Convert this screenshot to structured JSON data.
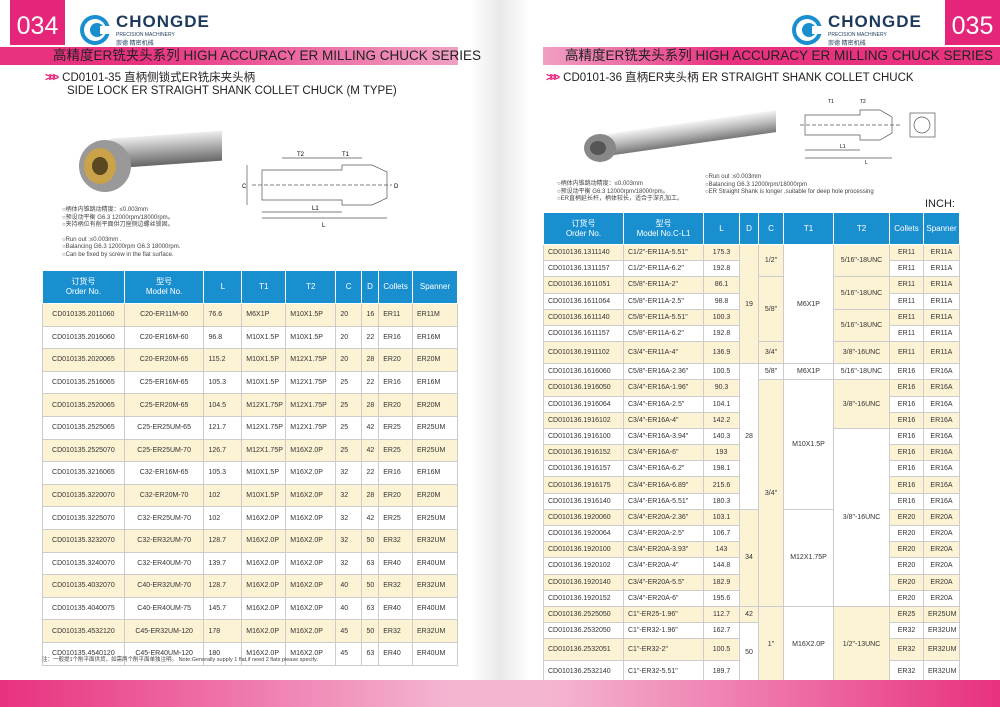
{
  "left": {
    "page_number": "034",
    "logo": {
      "brand": "CHONGDE",
      "sub": "PRECISION MACHINERY",
      "cn": "崇德 精密机械"
    },
    "band": "高精度ER铣夹头系列   HIGH ACCURACY ER MILLING CHUCK SERIES",
    "title_cn": "CD0101-35  直柄侧锁式ER铣床夹头柄",
    "title_en": "SIDE LOCK ER STRAIGHT SHANK COLLET CHUCK (M TYPE)",
    "drawing_labels": {
      "t1": "T1",
      "t2": "T2",
      "c": "C",
      "l1": "L1",
      "l": "L",
      "d": "D"
    },
    "notes_cn": [
      "○柄体内锥跳动精度：≤0.003mm",
      "○预设动平衡 G6.3 12000rpm/18000rpm。",
      "○夹持柄位有削平面供刀座侧边螺丝锁固。"
    ],
    "notes_en": [
      "○Run out :≤0.003mm .",
      "○Balancing G6.3 12000rpm G6.3 18000rpm.",
      "○Can be fixed by screw in the flat surface."
    ],
    "table": {
      "headers": [
        "订货号\nOrder No.",
        "型号\nModel No.",
        "L",
        "T1",
        "T2",
        "C",
        "D",
        "Collets",
        "Spanner"
      ],
      "rows": [
        [
          "CD010135.2011060",
          "C20-ER11M-60",
          "76.6",
          "M6X1P",
          "M10X1.5P",
          "20",
          "16",
          "ER11",
          "ER11M"
        ],
        [
          "CD010135.2016060",
          "C20-ER16M-60",
          "96.8",
          "M10X1.5P",
          "M10X1.5P",
          "20",
          "22",
          "ER16",
          "ER16M"
        ],
        [
          "CD010135.2020065",
          "C20-ER20M-65",
          "115.2",
          "M10X1.5P",
          "M12X1.75P",
          "20",
          "28",
          "ER20",
          "ER20M"
        ],
        [
          "CD010135.2516065",
          "C25-ER16M-65",
          "105.3",
          "M10X1.5P",
          "M12X1.75P",
          "25",
          "22",
          "ER16",
          "ER16M"
        ],
        [
          "CD010135.2520065",
          "C25-ER20M-65",
          "104.5",
          "M12X1.75P",
          "M12X1.75P",
          "25",
          "28",
          "ER20",
          "ER20M"
        ],
        [
          "CD010135.2525065",
          "C25-ER25UM-65",
          "121.7",
          "M12X1.75P",
          "M12X1.75P",
          "25",
          "42",
          "ER25",
          "ER25UM"
        ],
        [
          "CD010135.2525070",
          "C25-ER25UM-70",
          "126.7",
          "M12X1.75P",
          "M16X2.0P",
          "25",
          "42",
          "ER25",
          "ER25UM"
        ],
        [
          "CD010135.3216065",
          "C32-ER16M-65",
          "105.3",
          "M10X1.5P",
          "M16X2.0P",
          "32",
          "22",
          "ER16",
          "ER16M"
        ],
        [
          "CD010135.3220070",
          "C32-ER20M-70",
          "102",
          "M10X1.5P",
          "M16X2.0P",
          "32",
          "28",
          "ER20",
          "ER20M"
        ],
        [
          "CD010135.3225070",
          "C32-ER25UM-70",
          "102",
          "M16X2.0P",
          "M16X2.0P",
          "32",
          "42",
          "ER25",
          "ER25UM"
        ],
        [
          "CD010135.3232070",
          "C32-ER32UM-70",
          "128.7",
          "M16X2.0P",
          "M16X2.0P",
          "32",
          "50",
          "ER32",
          "ER32UM"
        ],
        [
          "CD010135.3240070",
          "C32-ER40UM-70",
          "139.7",
          "M16X2.0P",
          "M16X2.0P",
          "32",
          "63",
          "ER40",
          "ER40UM"
        ],
        [
          "CD010135.4032070",
          "C40-ER32UM-70",
          "128.7",
          "M16X2.0P",
          "M16X2.0P",
          "40",
          "50",
          "ER32",
          "ER32UM"
        ],
        [
          "CD010135.4040075",
          "C40-ER40UM-75",
          "145.7",
          "M16X2.0P",
          "M16X2.0P",
          "40",
          "63",
          "ER40",
          "ER40UM"
        ],
        [
          "CD010135.4532120",
          "C45-ER32UM-120",
          "178",
          "M16X2.0P",
          "M16X2.0P",
          "45",
          "50",
          "ER32",
          "ER32UM"
        ],
        [
          "CD010135.4540120",
          "C45-ER40UM-120",
          "180",
          "M16X2.0P",
          "M16X2.0P",
          "45",
          "63",
          "ER40",
          "ER40UM"
        ]
      ]
    },
    "footnote": "注：一般提1个削平面供货，如需两个削平面单独注明。  Note:Generally supply 1 flat,if need 2 flats please specify."
  },
  "right": {
    "page_number": "035",
    "logo": {
      "brand": "CHONGDE",
      "sub": "PRECISION MACHINERY",
      "cn": "崇德 精密机械"
    },
    "band": "高精度ER铣夹头系列   HIGH ACCURACY ER MILLING CHUCK SERIES",
    "title": "CD0101-36 直柄ER夹头柄   ER STRAIGHT SHANK COLLET CHUCK",
    "drawing_labels": {
      "t1": "T1",
      "t2": "T2",
      "l1": "L1",
      "l": "L"
    },
    "notes_cn": [
      "○柄体内锥跳动精度：≤0.003mm",
      "○预设动平衡 G6.3 12000rpm/18000rpm。",
      "○ER直柄延长杆，柄体较长，适合于深孔加工。"
    ],
    "notes_en": [
      "○Run out :≤0.003mm",
      "○Balancing G6.3 12000rpm/18000rpm",
      "○ER Straight Shank is longer ,suitable for deep hole processing"
    ],
    "unit": "INCH:",
    "table": {
      "headers": [
        "订货号\nOrder No.",
        "型号\nModel No.C-L1",
        "L",
        "D",
        "C",
        "T1",
        "T2",
        "Collets",
        "Spanner"
      ],
      "rows": [
        [
          "CD010136.1311140",
          "C1/2\"-ER11A-5.51\"",
          "175.3",
          "ER11",
          "ER11A"
        ],
        [
          "CD010136.1311157",
          "C1/2\"-ER11A-6.2\"",
          "192.8",
          "ER11",
          "ER11A"
        ],
        [
          "CD010136.1611051",
          "C5/8\"-ER11A-2\"",
          "86.1",
          "ER11",
          "ER11A"
        ],
        [
          "CD010136.1611064",
          "C5/8\"-ER11A-2.5\"",
          "98.8",
          "ER11",
          "ER11A"
        ],
        [
          "CD010136.1611140",
          "C5/8\"-ER11A-5.51\"",
          "100.3",
          "ER11",
          "ER11A"
        ],
        [
          "CD010136.1611157",
          "C5/8\"-ER11A-6.2\"",
          "192.8",
          "ER11",
          "ER11A"
        ],
        [
          "CD010136.1911102",
          "C3/4\"-ER11A-4\"",
          "136.9",
          "ER11",
          "ER11A"
        ],
        [
          "CD010136.1616060",
          "C5/8\"-ER16A-2.36\"",
          "100.5",
          "ER16",
          "ER16A"
        ],
        [
          "CD010136.1916050",
          "C3/4\"-ER16A-1.96\"",
          "90.3",
          "ER16",
          "ER16A"
        ],
        [
          "CD010136.1916064",
          "C3/4\"-ER16A-2.5\"",
          "104.1",
          "ER16",
          "ER16A"
        ],
        [
          "CD010136.1916102",
          "C3/4\"-ER16A-4\"",
          "142.2",
          "ER16",
          "ER16A"
        ],
        [
          "CD010136.1916100",
          "C3/4\"-ER16A-3.94\"",
          "140.3",
          "ER16",
          "ER16A"
        ],
        [
          "CD010136.1916152",
          "C3/4\"-ER16A-6\"",
          "193",
          "ER16",
          "ER16A"
        ],
        [
          "CD010136.1916157",
          "C3/4\"-ER16A-6.2\"",
          "198.1",
          "ER16",
          "ER16A"
        ],
        [
          "CD010136.1916175",
          "C3/4\"-ER16A-6.89\"",
          "215.6",
          "ER16",
          "ER16A"
        ],
        [
          "CD010136.1916140",
          "C3/4\"-ER16A-5.51\"",
          "180.3",
          "ER16",
          "ER16A"
        ],
        [
          "CD010136.1920060",
          "C3/4\"-ER20A-2.36\"",
          "103.1",
          "ER20",
          "ER20A"
        ],
        [
          "CD010136.1920064",
          "C3/4\"-ER20A-2.5\"",
          "106.7",
          "ER20",
          "ER20A"
        ],
        [
          "CD010136.1920100",
          "C3/4\"-ER20A-3.93\"",
          "143",
          "ER20",
          "ER20A"
        ],
        [
          "CD010136.1920102",
          "C3/4\"-ER20A-4\"",
          "144.8",
          "ER20",
          "ER20A"
        ],
        [
          "CD010136.1920140",
          "C3/4\"-ER20A-5.5\"",
          "182.9",
          "ER20",
          "ER20A"
        ],
        [
          "CD010136.1920152",
          "C3/4\"-ER20A-6\"",
          "195.6",
          "ER20",
          "ER20A"
        ],
        [
          "CD010136.2525050",
          "C1\"-ER25-1.96\"",
          "112.7",
          "ER25",
          "ER25UM"
        ],
        [
          "CD010136.2532050",
          "C1\"-ER32-1.96\"",
          "162.7",
          "ER32",
          "ER32UM"
        ],
        [
          "CD010136.2532051",
          "C1\"-ER32-2\"",
          "100.5",
          "ER32",
          "ER32UM"
        ],
        [
          "CD010136.2532140",
          "C1\"-ER32-5.51\"",
          "189.7",
          "ER32",
          "ER32UM"
        ]
      ],
      "merged": {
        "D": [
          [
            "19",
            7
          ],
          [
            "28",
            9
          ],
          [
            "34",
            6
          ],
          [
            "42",
            1
          ],
          [
            "50",
            3
          ]
        ],
        "C": [
          [
            "1/2\"",
            2
          ],
          [
            "5/8\"",
            4
          ],
          [
            "3/4\"",
            1
          ],
          [
            "5/8\"",
            1
          ],
          [
            "3/4\"",
            14
          ],
          [
            "1\"",
            4
          ]
        ],
        "T1": [
          [
            "M6X1P",
            7
          ],
          [
            "M6X1P",
            1
          ],
          [
            "M10X1.5P",
            8
          ],
          [
            "M12X1.75P",
            6
          ],
          [
            "M16X2.0P",
            4
          ]
        ],
        "T2": [
          [
            "5/16\"-18UNC",
            2
          ],
          [
            "5/16\"-18UNC",
            2
          ],
          [
            "5/16\"-18UNC",
            2
          ],
          [
            "3/8\"-16UNC",
            1
          ],
          [
            "5/16\"-18UNC",
            1
          ],
          [
            "3/8\"-16UNC",
            3
          ],
          [
            "3/8\"-16UNC",
            11
          ],
          [
            "1/2\"-13UNC",
            4
          ]
        ]
      }
    }
  }
}
